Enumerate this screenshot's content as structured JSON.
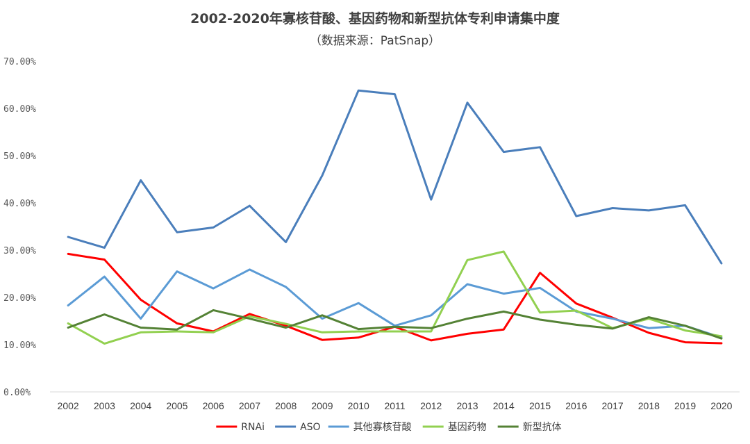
{
  "chart_data": {
    "type": "line",
    "title": "2002-2020年寡核苷酸、基因药物和新型抗体专利申请集中度",
    "subtitle": "（数据来源：PatSnap）",
    "x": [
      "2002",
      "2003",
      "2004",
      "2005",
      "2006",
      "2007",
      "2008",
      "2009",
      "2010",
      "2011",
      "2012",
      "2013",
      "2014",
      "2015",
      "2016",
      "2017",
      "2018",
      "2019",
      "2020"
    ],
    "ylim": [
      0,
      70
    ],
    "yticks": [
      0,
      10,
      20,
      30,
      40,
      50,
      60,
      70
    ],
    "ytick_labels": [
      "0.00%",
      "10.00%",
      "20.00%",
      "30.00%",
      "40.00%",
      "50.00%",
      "60.00%",
      "70.00%"
    ],
    "grid": false,
    "legend": "bottom",
    "series": [
      {
        "name": "RNAi",
        "color": "#ff0000",
        "values": [
          29.2,
          28.0,
          19.5,
          14.5,
          12.8,
          16.5,
          14.0,
          11.0,
          11.5,
          13.8,
          10.9,
          12.3,
          13.2,
          25.2,
          18.7,
          15.7,
          12.5,
          10.5,
          10.3
        ]
      },
      {
        "name": "ASO",
        "color": "#4a7ebb",
        "values": [
          32.8,
          30.5,
          44.8,
          33.8,
          34.8,
          39.4,
          31.7,
          45.8,
          63.8,
          63.0,
          40.7,
          61.2,
          50.8,
          51.8,
          37.2,
          38.9,
          38.4,
          39.5,
          27.2
        ]
      },
      {
        "name": "其他寡核苷酸",
        "color": "#5b9bd5",
        "values": [
          18.3,
          24.4,
          15.5,
          25.5,
          21.9,
          25.9,
          22.2,
          15.5,
          18.8,
          14.0,
          16.2,
          22.8,
          20.8,
          22.0,
          17.0,
          15.5,
          13.5,
          14.0,
          11.5
        ]
      },
      {
        "name": "基因药物",
        "color": "#92d050",
        "values": [
          14.5,
          10.2,
          12.6,
          12.8,
          12.6,
          16.0,
          14.4,
          12.6,
          12.8,
          12.8,
          12.8,
          27.9,
          29.7,
          16.8,
          17.2,
          13.5,
          15.5,
          13.0,
          11.8
        ]
      },
      {
        "name": "新型抗体",
        "color": "#548235",
        "values": [
          13.6,
          16.4,
          13.6,
          13.2,
          17.3,
          15.5,
          13.6,
          16.2,
          13.3,
          13.8,
          13.5,
          15.5,
          17.0,
          15.3,
          14.2,
          13.4,
          15.8,
          14.0,
          11.3
        ]
      }
    ]
  }
}
